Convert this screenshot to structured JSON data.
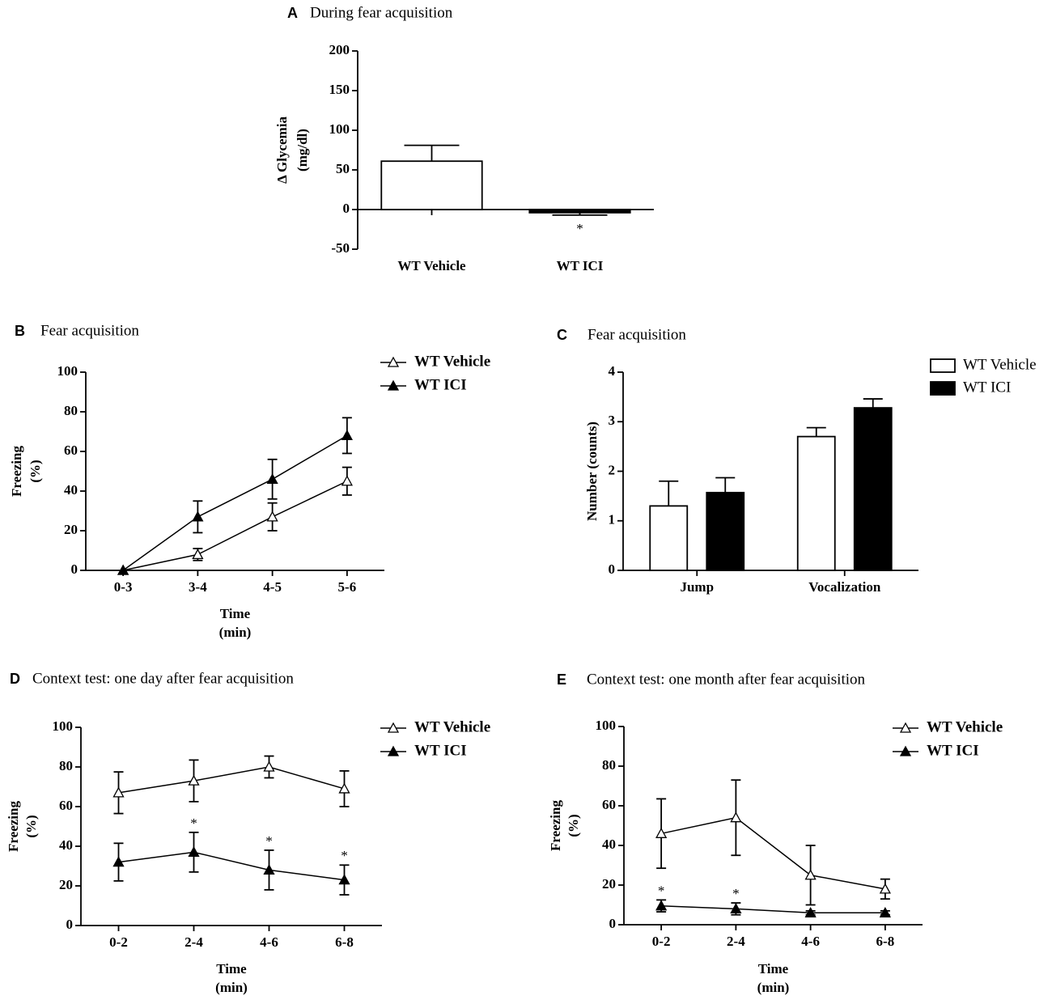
{
  "chart_data": [
    {
      "type": "bar",
      "panel": "A",
      "title": "During fear acquisition",
      "ylabel": [
        "Δ Glycemia",
        "(mg/dl)"
      ],
      "categories": [
        "WT Vehicle",
        "WT ICI"
      ],
      "values": [
        61,
        -4
      ],
      "errors": [
        20,
        3
      ],
      "colors": [
        "#ffffff",
        "#000000"
      ],
      "ylim": [
        -50,
        200
      ],
      "yticks": [
        -50,
        0,
        50,
        100,
        150,
        200
      ],
      "annotations": [
        {
          "text": "*",
          "x": "WT ICI"
        }
      ]
    },
    {
      "type": "line",
      "panel": "B",
      "title": "Fear acquisition",
      "xlabel": [
        "Time",
        "(min)"
      ],
      "ylabel": [
        "Freezing",
        "(%)"
      ],
      "categories": [
        "0-3",
        "3-4",
        "4-5",
        "5-6"
      ],
      "series": [
        {
          "name": "WT Vehicle",
          "color": "#ffffff",
          "values": [
            0,
            8,
            27,
            45
          ],
          "errors": [
            0,
            3,
            7,
            7
          ]
        },
        {
          "name": "WT ICI",
          "color": "#000000",
          "values": [
            0,
            27,
            46,
            68
          ],
          "errors": [
            0,
            8,
            10,
            9
          ]
        }
      ],
      "ylim": [
        0,
        100
      ],
      "yticks": [
        0,
        20,
        40,
        60,
        80,
        100
      ]
    },
    {
      "type": "grouped_bar",
      "panel": "C",
      "title": "Fear acquisition",
      "ylabel": "Number (counts)",
      "categories": [
        "Jump",
        "Vocalization"
      ],
      "series": [
        {
          "name": "WT Vehicle",
          "color": "#ffffff",
          "values": [
            1.3,
            2.7
          ],
          "errors": [
            0.5,
            0.18
          ]
        },
        {
          "name": "WT ICI",
          "color": "#000000",
          "values": [
            1.57,
            3.28
          ],
          "errors": [
            0.3,
            0.18
          ]
        }
      ],
      "ylim": [
        0,
        4
      ],
      "yticks": [
        0,
        1,
        2,
        3,
        4
      ]
    },
    {
      "type": "line",
      "panel": "D",
      "title": "Context test: one day after fear acquisition",
      "xlabel": [
        "Time",
        "(min)"
      ],
      "ylabel": [
        "Freezing",
        "(%)"
      ],
      "categories": [
        "0-2",
        "2-4",
        "4-6",
        "6-8"
      ],
      "series": [
        {
          "name": "WT Vehicle",
          "color": "#ffffff",
          "values": [
            67,
            73,
            80,
            69
          ],
          "errors": [
            10.5,
            10.5,
            5.5,
            9
          ]
        },
        {
          "name": "WT ICI",
          "color": "#000000",
          "values": [
            32,
            37,
            28,
            23
          ],
          "errors": [
            9.5,
            10,
            10,
            7.5
          ]
        }
      ],
      "ylim": [
        0,
        100
      ],
      "yticks": [
        0,
        20,
        40,
        60,
        80,
        100
      ],
      "annotations": [
        {
          "text": "*",
          "x": "2-4"
        },
        {
          "text": "*",
          "x": "4-6"
        },
        {
          "text": "*",
          "x": "6-8"
        }
      ]
    },
    {
      "type": "line",
      "panel": "E",
      "title": "Context test: one month after fear acquisition",
      "xlabel": [
        "Time",
        "(min)"
      ],
      "ylabel": [
        "Freezing",
        "(%)"
      ],
      "categories": [
        "0-2",
        "2-4",
        "4-6",
        "6-8"
      ],
      "series": [
        {
          "name": "WT Vehicle",
          "color": "#ffffff",
          "values": [
            46,
            54,
            25,
            18
          ],
          "errors": [
            17.5,
            19,
            15,
            5
          ]
        },
        {
          "name": "WT ICI",
          "color": "#000000",
          "values": [
            9.5,
            8,
            6,
            6
          ],
          "errors": [
            3,
            3,
            1,
            1
          ]
        }
      ],
      "ylim": [
        0,
        100
      ],
      "yticks": [
        0,
        20,
        40,
        60,
        80,
        100
      ],
      "annotations": [
        {
          "text": "*",
          "x": "0-2"
        },
        {
          "text": "*",
          "x": "2-4"
        }
      ]
    }
  ]
}
